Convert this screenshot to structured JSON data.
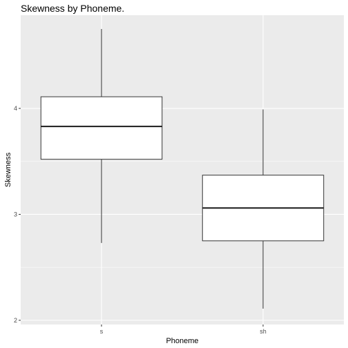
{
  "chart_data": {
    "type": "boxplot",
    "title": "Skewness by Phoneme.",
    "xlabel": "Phoneme",
    "ylabel": "Skewness",
    "categories": [
      "s",
      "sh"
    ],
    "boxes": [
      {
        "category": "s",
        "min": 2.73,
        "q1": 3.52,
        "median": 3.83,
        "q3": 4.11,
        "max": 4.75
      },
      {
        "category": "sh",
        "min": 2.11,
        "q1": 2.75,
        "median": 3.06,
        "q3": 3.37,
        "max": 3.99
      }
    ],
    "yticks": [
      2,
      3,
      4
    ],
    "ylim": [
      1.96,
      4.88
    ],
    "grid": true,
    "colors": {
      "panel": "#ebebeb",
      "grid": "#ffffff",
      "box_fill": "#ffffff",
      "box_stroke": "#333333",
      "median": "#1a1a1a"
    }
  }
}
